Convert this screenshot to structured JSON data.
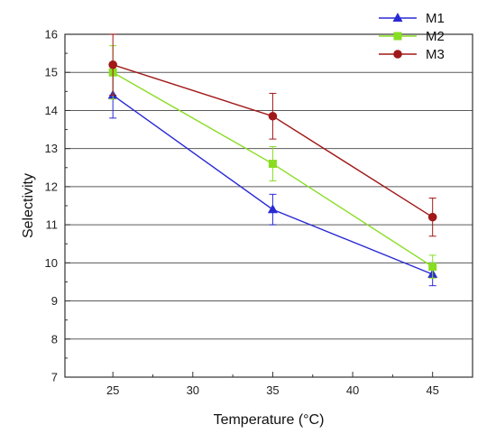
{
  "chart_data": {
    "type": "line",
    "xlabel": "Temperature (°C)",
    "ylabel": "Selectivity",
    "xlim": [
      22,
      47.5
    ],
    "ylim": [
      7,
      16
    ],
    "x_ticks": [
      25,
      30,
      35,
      40,
      45
    ],
    "y_ticks": [
      7,
      8,
      9,
      10,
      11,
      12,
      13,
      14,
      15,
      16
    ],
    "grid": {
      "horizontal": true,
      "vertical": false
    },
    "legend_position": "top-right",
    "x": [
      25,
      35,
      45
    ],
    "series": [
      {
        "name": "M1",
        "marker": "triangle",
        "color": "#2a2ad4",
        "values": [
          14.4,
          11.4,
          9.7
        ],
        "errors": [
          0.6,
          0.4,
          0.3
        ]
      },
      {
        "name": "M2",
        "marker": "square",
        "color": "#88dd22",
        "values": [
          15.0,
          12.6,
          9.9
        ],
        "errors": [
          0.7,
          0.45,
          0.3
        ]
      },
      {
        "name": "M3",
        "marker": "circle",
        "color": "#a01818",
        "values": [
          15.2,
          13.85,
          11.2
        ],
        "errors": [
          0.8,
          0.6,
          0.5
        ]
      }
    ]
  }
}
